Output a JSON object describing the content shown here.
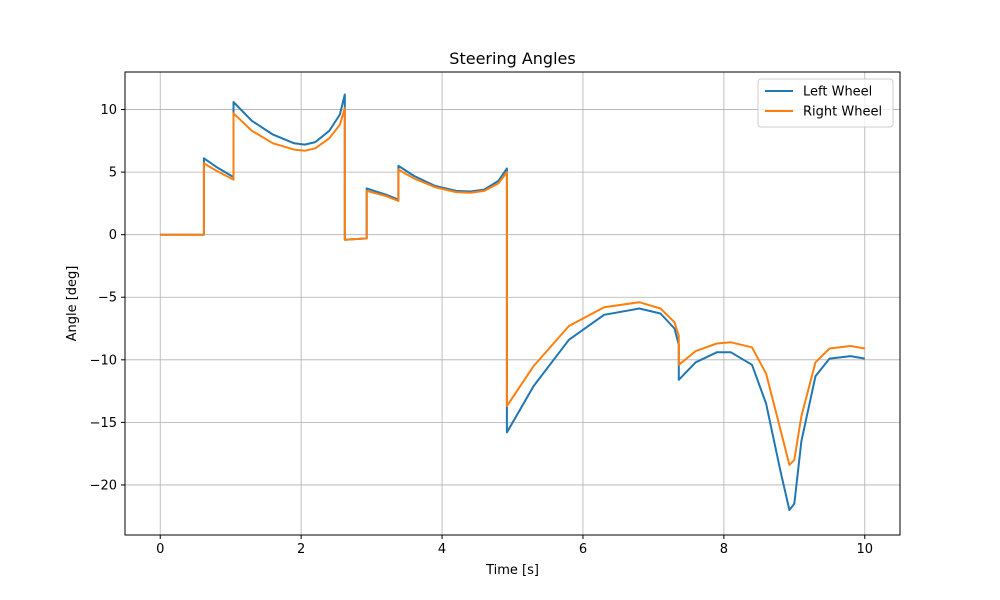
{
  "chart_data": {
    "type": "line",
    "title": "Steering Angles",
    "xlabel": "Time [s]",
    "ylabel": "Angle [deg]",
    "xlim": [
      -0.5,
      10.5
    ],
    "ylim": [
      -24,
      13
    ],
    "xticks": [
      0,
      2,
      4,
      6,
      8,
      10
    ],
    "yticks": [
      -20,
      -15,
      -10,
      -5,
      0,
      5,
      10
    ],
    "xtick_labels": [
      "0",
      "2",
      "4",
      "6",
      "8",
      "10"
    ],
    "ytick_labels": [
      "−20",
      "−15",
      "−10",
      "−5",
      "0",
      "5",
      "10"
    ],
    "grid": true,
    "legend_position": "top-right",
    "series": [
      {
        "name": "Left Wheel",
        "color": "#1f77b4",
        "x": [
          0,
          0.62,
          0.62,
          0.8,
          1.04,
          1.04,
          1.3,
          1.6,
          1.9,
          2.05,
          2.2,
          2.4,
          2.55,
          2.62,
          2.62,
          2.93,
          2.93,
          3.2,
          3.38,
          3.38,
          3.6,
          3.9,
          4.2,
          4.4,
          4.6,
          4.8,
          4.92,
          4.92,
          5.3,
          5.8,
          6.3,
          6.8,
          7.1,
          7.3,
          7.36,
          7.36,
          7.6,
          7.9,
          8.1,
          8.4,
          8.6,
          8.8,
          8.93,
          9.0,
          9.1,
          9.3,
          9.5,
          9.8,
          10.0
        ],
        "y": [
          0,
          0,
          6.1,
          5.4,
          4.6,
          10.6,
          9.1,
          8.0,
          7.3,
          7.2,
          7.4,
          8.3,
          9.6,
          11.2,
          -0.4,
          -0.3,
          3.7,
          3.2,
          2.8,
          5.5,
          4.7,
          3.9,
          3.5,
          3.45,
          3.6,
          4.3,
          5.3,
          -15.8,
          -12.1,
          -8.4,
          -6.4,
          -5.9,
          -6.3,
          -7.5,
          -8.8,
          -11.6,
          -10.2,
          -9.4,
          -9.4,
          -10.4,
          -13.5,
          -18.8,
          -22.0,
          -21.5,
          -16.5,
          -11.3,
          -9.9,
          -9.7,
          -9.9
        ]
      },
      {
        "name": "Right Wheel",
        "color": "#ff7f0e",
        "x": [
          0,
          0.62,
          0.62,
          0.8,
          1.04,
          1.04,
          1.3,
          1.6,
          1.9,
          2.05,
          2.2,
          2.4,
          2.55,
          2.62,
          2.62,
          2.93,
          2.93,
          3.2,
          3.38,
          3.38,
          3.6,
          3.9,
          4.2,
          4.4,
          4.6,
          4.8,
          4.92,
          4.92,
          5.3,
          5.8,
          6.3,
          6.8,
          7.1,
          7.3,
          7.36,
          7.36,
          7.6,
          7.9,
          8.1,
          8.4,
          8.6,
          8.8,
          8.93,
          9.0,
          9.1,
          9.3,
          9.5,
          9.8,
          10.0
        ],
        "y": [
          0,
          0,
          5.7,
          5.1,
          4.4,
          9.7,
          8.3,
          7.3,
          6.8,
          6.7,
          6.9,
          7.7,
          8.8,
          10.1,
          -0.4,
          -0.3,
          3.5,
          3.1,
          2.7,
          5.2,
          4.5,
          3.8,
          3.4,
          3.35,
          3.5,
          4.1,
          5.0,
          -13.7,
          -10.5,
          -7.3,
          -5.8,
          -5.4,
          -5.9,
          -7.0,
          -8.1,
          -10.4,
          -9.3,
          -8.7,
          -8.6,
          -9.0,
          -11.1,
          -15.5,
          -18.4,
          -18.0,
          -14.5,
          -10.2,
          -9.1,
          -8.9,
          -9.1
        ]
      }
    ]
  }
}
